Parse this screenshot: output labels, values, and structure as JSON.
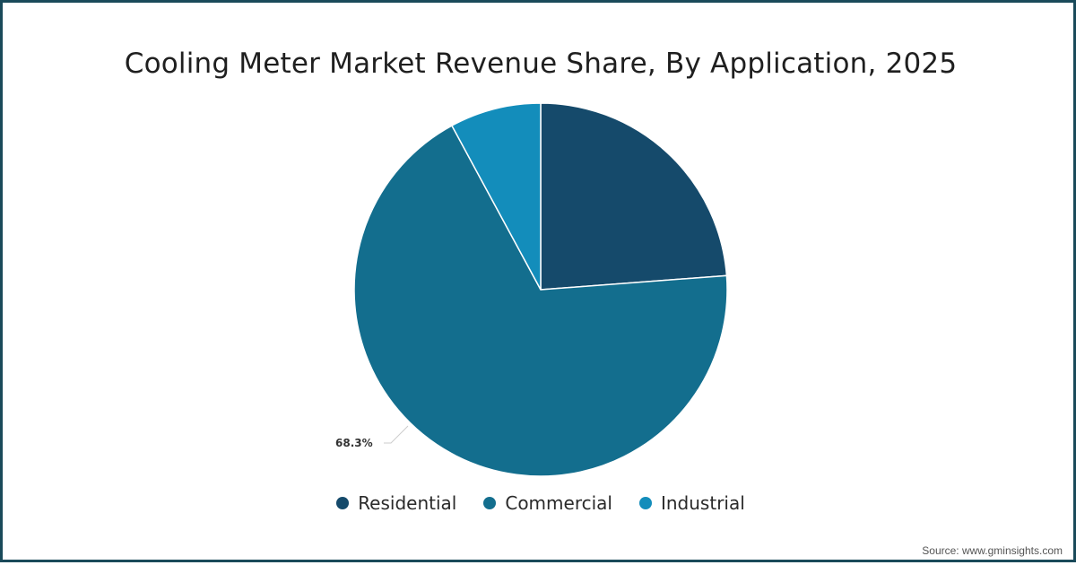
{
  "chart_data": {
    "type": "pie",
    "title": "Cooling Meter Market Revenue Share, By Application, 2025",
    "categories": [
      "Residential",
      "Commercial",
      "Industrial"
    ],
    "values": [
      23.8,
      68.3,
      7.9
    ],
    "colors": [
      "#154a6b",
      "#136e8e",
      "#138dbb"
    ],
    "data_labels": [
      {
        "category": "Commercial",
        "text": "68.3%"
      }
    ],
    "legend_position": "bottom",
    "start_angle_deg": 0,
    "direction": "clockwise"
  },
  "title": "Cooling Meter Market Revenue Share, By Application, 2025",
  "labels": {
    "commercial_pct": "68.3%"
  },
  "legend": {
    "items": [
      {
        "label": "Residential",
        "color": "#154a6b"
      },
      {
        "label": "Commercial",
        "color": "#136e8e"
      },
      {
        "label": "Industrial",
        "color": "#138dbb"
      }
    ]
  },
  "source": "Source: www.gminsights.com"
}
